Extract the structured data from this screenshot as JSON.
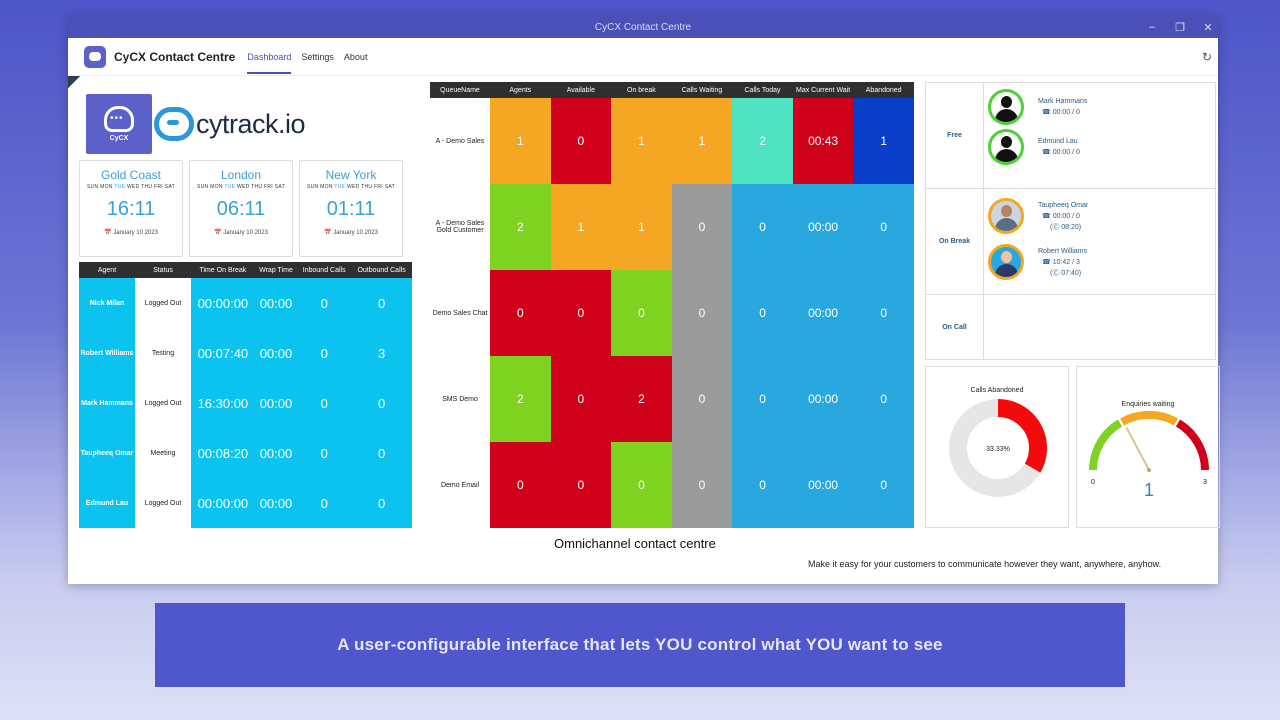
{
  "window": {
    "title": "CyCX Contact Centre"
  },
  "app": {
    "title": "CyCX Contact Centre",
    "nav": [
      "Dashboard",
      "Settings",
      "About"
    ]
  },
  "logos": {
    "cycx_label": "CyCX",
    "cytrack_text": "cytrack.io"
  },
  "clocks": [
    {
      "city": "Gold Coast",
      "time": "16:11",
      "date": "January 10 2023"
    },
    {
      "city": "London",
      "time": "06:11",
      "date": "January 10 2023"
    },
    {
      "city": "New York",
      "time": "01:11",
      "date": "January 10 2023"
    }
  ],
  "clock_days": [
    "SUN",
    "MON",
    "TUE",
    "WED",
    "THU",
    "FRI",
    "SAT"
  ],
  "clock_today": "TUE",
  "agent_table": {
    "headers": [
      "Agent",
      "Status",
      "Time On Break",
      "Wrap Time",
      "Inbound Calls",
      "Outbound Calls"
    ],
    "rows": [
      [
        "Nick Milan",
        "Logged Out",
        "00:00:00",
        "00:00",
        "0",
        "0"
      ],
      [
        "Robert Williams",
        "Testing",
        "00:07:40",
        "00:00",
        "0",
        "3"
      ],
      [
        "Mark Hammans",
        "Logged Out",
        "16:30:00",
        "00:00",
        "0",
        "0"
      ],
      [
        "Taupheeq Omar",
        "Meeting",
        "00:08:20",
        "00:00",
        "0",
        "0"
      ],
      [
        "Edmund Lau",
        "Logged Out",
        "00:00:00",
        "00:00",
        "0",
        "0"
      ]
    ]
  },
  "queue_table": {
    "headers": [
      "QueueName",
      "Agents",
      "Available",
      "On break",
      "Calls Waiting",
      "Calls Today",
      "Max Current Wait",
      "Abandoned"
    ],
    "rows": [
      [
        "A - Demo Sales",
        "1",
        "0",
        "1",
        "1",
        "2",
        "00:43",
        "1"
      ],
      [
        "A - Demo Sales Gold Customer",
        "2",
        "1",
        "1",
        "0",
        "0",
        "00:00",
        "0"
      ],
      [
        "Demo Sales Chat",
        "0",
        "0",
        "0",
        "0",
        "0",
        "00:00",
        "0"
      ],
      [
        "SMS Demo",
        "2",
        "0",
        "2",
        "0",
        "0",
        "00:00",
        "0"
      ],
      [
        "Demo Email",
        "0",
        "0",
        "0",
        "0",
        "0",
        "00:00",
        "0"
      ]
    ],
    "colors": [
      [
        "orange",
        "red",
        "orange",
        "orange",
        "teal",
        "red",
        "blue"
      ],
      [
        "green",
        "orange",
        "orange",
        "grey",
        "sky",
        "sky",
        "sky"
      ],
      [
        "red",
        "red",
        "green",
        "grey",
        "sky",
        "sky",
        "sky"
      ],
      [
        "green",
        "red",
        "red",
        "grey",
        "sky",
        "sky",
        "sky"
      ],
      [
        "red",
        "red",
        "green",
        "grey",
        "sky",
        "sky",
        "sky"
      ]
    ]
  },
  "status_panel": {
    "free_label": "Free",
    "onbreak_label": "On Break",
    "oncall_label": "On Call",
    "free": [
      {
        "name": "Mark Hammans",
        "counts": "00:00  /  0"
      },
      {
        "name": "Edmund Lau",
        "counts": "00:00  /  0"
      }
    ],
    "on_break": [
      {
        "name": "Taupheeq Omar",
        "counts": "00:00  /  0",
        "break_time": "(Ⓒ 08:20)"
      },
      {
        "name": "Robert Williams",
        "counts": "10:42  /  3",
        "break_time": "(Ⓒ 07:40)"
      }
    ]
  },
  "calls_abandoned": {
    "title": "Calls Abandoned",
    "label": "33.33%",
    "percent": 33.33
  },
  "enquiries_waiting": {
    "title": "Enquiries waiting",
    "min": "0",
    "max": "3",
    "value": "1"
  },
  "caption": "Omnichannel contact centre",
  "subcaption": "Make it easy for your customers to communicate however they want, anywhere, anyhow.",
  "banner": "A user-configurable interface that lets YOU control what YOU want to see",
  "colors": {
    "orange": "#f5a623",
    "red": "#d0021b",
    "teal": "#50e3c2",
    "blue": "#0a3fc9",
    "green": "#7ed321",
    "grey": "#9b9b9b",
    "sky": "#29a8e0",
    "accent": "#4a50b8"
  }
}
